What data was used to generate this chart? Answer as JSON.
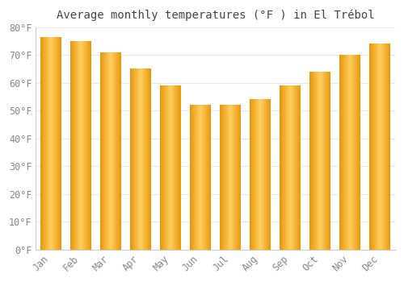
{
  "title": "Average monthly temperatures (°F ) in El Trébol",
  "months": [
    "Jan",
    "Feb",
    "Mar",
    "Apr",
    "May",
    "Jun",
    "Jul",
    "Aug",
    "Sep",
    "Oct",
    "Nov",
    "Dec"
  ],
  "values": [
    76.5,
    75.0,
    71.0,
    65.0,
    59.0,
    52.0,
    52.0,
    54.0,
    59.0,
    64.0,
    70.0,
    74.0
  ],
  "bar_color_edge": "#E8960A",
  "bar_color_mid": "#FDB92E",
  "bar_color_light": "#FFDC80",
  "ylim": [
    0,
    80
  ],
  "yticks": [
    0,
    10,
    20,
    30,
    40,
    50,
    60,
    70,
    80
  ],
  "ytick_labels": [
    "0°F",
    "10°F",
    "20°F",
    "30°F",
    "40°F",
    "50°F",
    "60°F",
    "70°F",
    "80°F"
  ],
  "background_color": "#ffffff",
  "grid_color": "#e8e8e8",
  "title_fontsize": 10,
  "tick_fontsize": 8.5,
  "title_color": "#444444",
  "tick_color": "#888888",
  "bar_width": 0.7
}
